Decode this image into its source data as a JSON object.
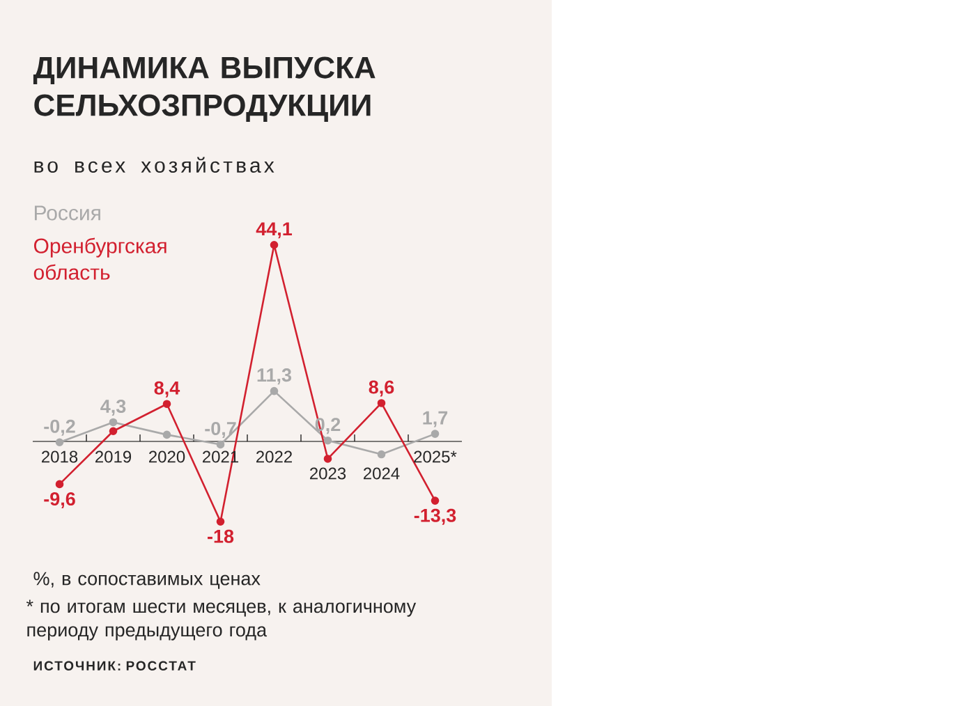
{
  "chart_data": {
    "type": "line",
    "title": "ДИНАМИКА ВЫПУСКА СЕЛЬХОЗПРОДУКЦИИ",
    "subtitle": "во всех хозяйствах",
    "categories": [
      "2018",
      "2019",
      "2020",
      "2021",
      "2022",
      "2023",
      "2024",
      "2025*"
    ],
    "series": [
      {
        "name": "Россия",
        "color": "#a9a9a9",
        "values": [
          -0.2,
          4.3,
          1.5,
          -0.7,
          11.3,
          0.2,
          -2.9,
          1.7
        ],
        "value_labels": [
          "-0,2",
          "4,3",
          null,
          "-0,7",
          "11,3",
          "0,2",
          null,
          "1,7"
        ]
      },
      {
        "name": "Оренбургская область",
        "color": "#d2202f",
        "values": [
          -9.6,
          2.3,
          8.4,
          -18,
          44.1,
          -3.9,
          8.6,
          -13.3
        ],
        "value_labels": [
          "-9,6",
          null,
          "8,4",
          "-18",
          "44,1",
          null,
          "8,6",
          "-13,3"
        ]
      }
    ],
    "marker": "circle",
    "line_style": "solid",
    "legend": "top left",
    "grid": false,
    "annotations": [
      "%, в сопоставимых ценах",
      "* по итогам шести месяцев, к аналогичному периоду предыдущего года",
      "ИСТОЧНИК: РОССТАТ"
    ]
  }
}
